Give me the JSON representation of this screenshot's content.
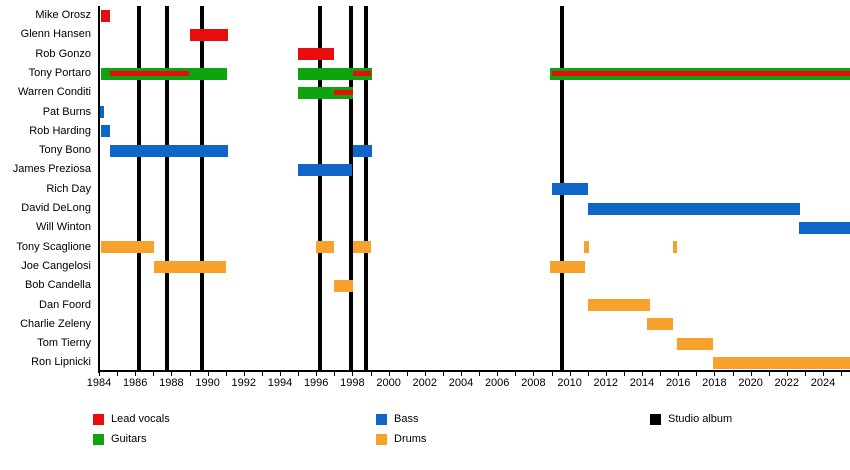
{
  "chart_data": {
    "type": "bar",
    "subtype": "gantt-timeline",
    "title": "",
    "xlabel": "",
    "ylabel": "",
    "x_axis": {
      "min": 1984,
      "max": 2025.5,
      "year_labels": [
        1984,
        1986,
        1988,
        1990,
        1992,
        1994,
        1996,
        1998,
        2000,
        2002,
        2004,
        2006,
        2008,
        2010,
        2012,
        2014,
        2016,
        2018,
        2020,
        2022,
        2024
      ],
      "minor_tick_start": 1984,
      "minor_tick_end": 2025,
      "grid": false
    },
    "colors": {
      "lead_vocals": "#e80d0d",
      "guitars": "#0fa30f",
      "bass": "#1065c8",
      "drums": "#f9a12d",
      "album": "#000000"
    },
    "legend": [
      {
        "label": "Lead vocals",
        "key": "lead_vocals",
        "col": 0,
        "row": 0
      },
      {
        "label": "Guitars",
        "key": "guitars",
        "col": 0,
        "row": 1
      },
      {
        "label": "Bass",
        "key": "bass",
        "col": 1,
        "row": 0
      },
      {
        "label": "Drums",
        "key": "drums",
        "col": 1,
        "row": 1
      },
      {
        "label": "Studio album",
        "key": "album",
        "col": 2,
        "row": 0
      }
    ],
    "album_lines": [
      1986.2,
      1987.75,
      1989.7,
      1996.2,
      1997.9,
      1998.75,
      2009.6
    ],
    "rows": [
      {
        "name": "Mike Orosz",
        "segments": [
          {
            "role": "lead_vocals",
            "start": 1984.1,
            "end": 1984.6
          }
        ]
      },
      {
        "name": "Glenn Hansen",
        "segments": [
          {
            "role": "lead_vocals",
            "start": 1989.0,
            "end": 1991.1
          }
        ]
      },
      {
        "name": "Rob Gonzo",
        "segments": [
          {
            "role": "lead_vocals",
            "start": 1995.0,
            "end": 1997.0
          }
        ]
      },
      {
        "name": "Tony Portaro",
        "segments": [
          {
            "role": "guitars",
            "start": 1984.1,
            "end": 1991.1,
            "overlay": {
              "role": "lead_vocals",
              "start": 1984.6,
              "end": 1989.0
            }
          },
          {
            "role": "guitars",
            "start": 1995.0,
            "end": 1999.1,
            "overlay": {
              "role": "lead_vocals",
              "start": 1998.05,
              "end": 1999.05
            }
          },
          {
            "role": "guitars",
            "start": 2008.9,
            "end": 2025.5,
            "overlay": {
              "role": "lead_vocals",
              "start": 2009.0,
              "end": 2025.5
            }
          }
        ]
      },
      {
        "name": "Warren Conditi",
        "segments": [
          {
            "role": "guitars",
            "start": 1995.0,
            "end": 1998.05,
            "overlay": {
              "role": "lead_vocals",
              "start": 1997.0,
              "end": 1998.05
            }
          }
        ]
      },
      {
        "name": "Pat Burns",
        "segments": [
          {
            "role": "bass",
            "start": 1984.05,
            "end": 1984.3
          }
        ]
      },
      {
        "name": "Rob Harding",
        "segments": [
          {
            "role": "bass",
            "start": 1984.1,
            "end": 1984.6
          }
        ]
      },
      {
        "name": "Tony Bono",
        "segments": [
          {
            "role": "bass",
            "start": 1984.6,
            "end": 1991.15
          },
          {
            "role": "bass",
            "start": 1998.05,
            "end": 1999.1
          }
        ]
      },
      {
        "name": "James Preziosa",
        "segments": [
          {
            "role": "bass",
            "start": 1995.0,
            "end": 1998.0
          }
        ]
      },
      {
        "name": "Rich Day",
        "segments": [
          {
            "role": "bass",
            "start": 2009.0,
            "end": 2011.0
          }
        ]
      },
      {
        "name": "David DeLong",
        "segments": [
          {
            "role": "bass",
            "start": 2011.0,
            "end": 2022.75
          }
        ]
      },
      {
        "name": "Will Winton",
        "segments": [
          {
            "role": "bass",
            "start": 2022.7,
            "end": 2025.5
          }
        ]
      },
      {
        "name": "Tony Scaglione",
        "segments": [
          {
            "role": "drums",
            "start": 1984.1,
            "end": 1987.05
          },
          {
            "role": "drums",
            "start": 1996.0,
            "end": 1997.0
          },
          {
            "role": "drums",
            "start": 1998.05,
            "end": 1999.05
          },
          {
            "role": "drums",
            "start": 2010.8,
            "end": 2011.05
          },
          {
            "role": "drums",
            "start": 2015.7,
            "end": 2015.95
          }
        ]
      },
      {
        "name": "Joe Cangelosi",
        "segments": [
          {
            "role": "drums",
            "start": 1987.05,
            "end": 1991.0
          },
          {
            "role": "drums",
            "start": 2008.9,
            "end": 2010.85
          }
        ]
      },
      {
        "name": "Bob Candella",
        "segments": [
          {
            "role": "drums",
            "start": 1997.0,
            "end": 1998.05
          }
        ]
      },
      {
        "name": "Dan Foord",
        "segments": [
          {
            "role": "drums",
            "start": 2011.0,
            "end": 2014.45
          }
        ]
      },
      {
        "name": "Charlie Zeleny",
        "segments": [
          {
            "role": "drums",
            "start": 2014.3,
            "end": 2015.7
          }
        ]
      },
      {
        "name": "Tom Tierny",
        "segments": [
          {
            "role": "drums",
            "start": 2015.95,
            "end": 2017.9
          }
        ]
      },
      {
        "name": "Ron Lipnicki",
        "segments": [
          {
            "role": "drums",
            "start": 2017.9,
            "end": 2025.5
          }
        ]
      }
    ]
  }
}
